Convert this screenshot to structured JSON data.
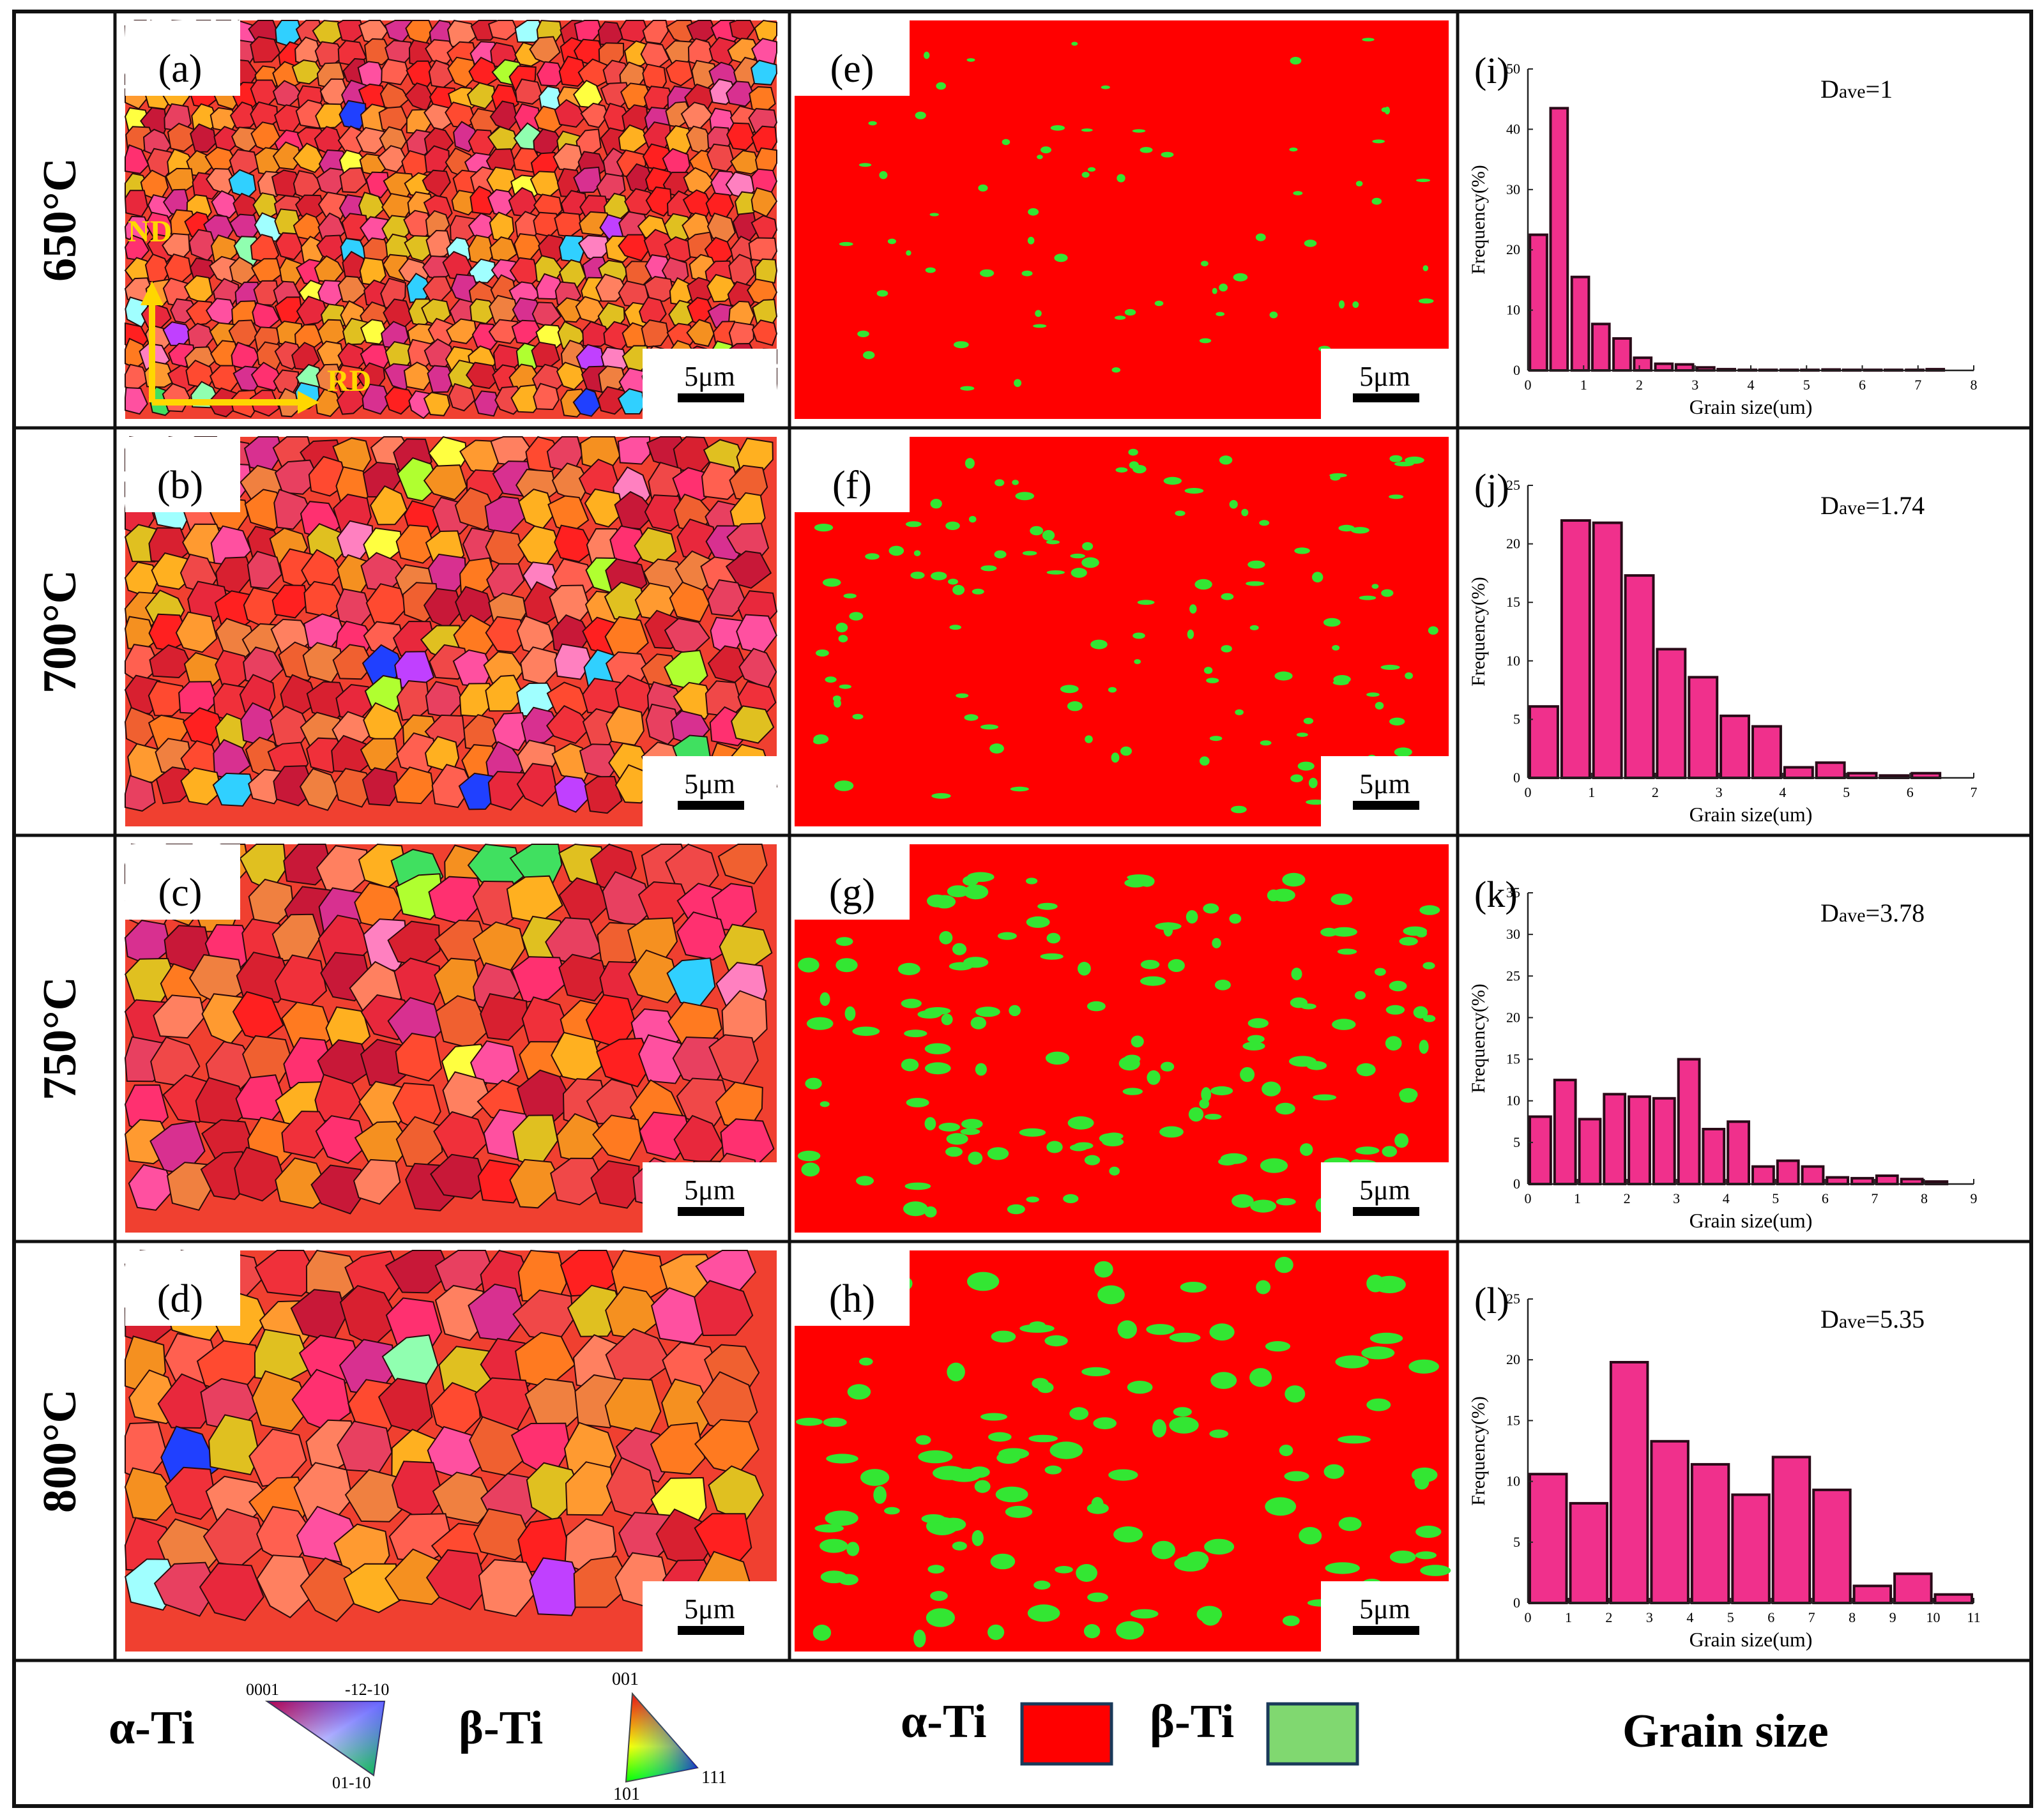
{
  "rows": [
    {
      "temperature": "650°C",
      "ebsd_label": "(a)",
      "phase_label": "(e)",
      "hist_label": "(i)",
      "dave_main": "D",
      "dave_sub": "ave",
      "dave_value": "=1"
    },
    {
      "temperature": "700°C",
      "ebsd_label": "(b)",
      "phase_label": "(f)",
      "hist_label": "(j)",
      "dave_main": "D",
      "dave_sub": "ave",
      "dave_value": "=1.74"
    },
    {
      "temperature": "750°C",
      "ebsd_label": "(c)",
      "phase_label": "(g)",
      "hist_label": "(k)",
      "dave_main": "D",
      "dave_sub": "ave",
      "dave_value": "=3.78"
    },
    {
      "temperature": "800°C",
      "ebsd_label": "(d)",
      "phase_label": "(h)",
      "hist_label": "(l)",
      "dave_main": "D",
      "dave_sub": "ave",
      "dave_value": "=5.35"
    }
  ],
  "scale_bar": "5μm",
  "axes_labels": {
    "nd": "ND",
    "rd": "RD"
  },
  "legend": {
    "alpha_ti": "α-Ti",
    "beta_ti": "β-Ti",
    "alpha_ipf": {
      "top_left": "0001",
      "top_right": "-12-10",
      "bottom": "01-10"
    },
    "beta_ipf": {
      "top": "001",
      "bottom_left": "101",
      "bottom_right": "111"
    },
    "grain_size": "Grain size"
  },
  "colors": {
    "alpha_phase": "#ff0000",
    "beta_phase": "#33e633",
    "bar_fill": "#f0308c",
    "bar_edge": "#2a0a18",
    "beta_legend": "#80d870",
    "legend_border": "#1a3a5a",
    "arrow": "#ffd700"
  },
  "chart_data": [
    {
      "type": "bar",
      "panel": "(i)",
      "xlabel": "Grain size(um)",
      "ylabel": "Frequency(%)",
      "xlim": [
        0,
        8
      ],
      "ylim": [
        0,
        50
      ],
      "x_ticks": [
        "0",
        "1",
        "2",
        "3",
        "4",
        "5",
        "6",
        "7",
        "8"
      ],
      "y_ticks": [
        "0",
        "10",
        "20",
        "30",
        "40",
        "50"
      ],
      "bin_width": 0.375,
      "x": [
        0.19,
        0.56,
        0.94,
        1.31,
        1.69,
        2.06,
        2.44,
        2.81,
        3.19,
        3.56,
        3.94,
        4.31,
        4.69,
        5.06,
        5.44,
        5.81,
        6.19,
        6.56,
        6.94,
        7.31
      ],
      "values": [
        22.5,
        43.5,
        15.5,
        7.7,
        5.3,
        2.1,
        1.1,
        1.0,
        0.5,
        0.2,
        0.1,
        0.1,
        0.1,
        0.1,
        0.15,
        0.1,
        0.1,
        0.1,
        0.1,
        0.2
      ]
    },
    {
      "type": "bar",
      "panel": "(j)",
      "xlabel": "Grain size(um)",
      "ylabel": "Frequency(%)",
      "xlim": [
        0,
        7
      ],
      "ylim": [
        0,
        25
      ],
      "x_ticks": [
        "0",
        "1",
        "2",
        "3",
        "4",
        "5",
        "6",
        "7"
      ],
      "y_ticks": [
        "0",
        "5",
        "10",
        "15",
        "20",
        "25"
      ],
      "bin_width": 0.5,
      "x": [
        0.25,
        0.75,
        1.25,
        1.75,
        2.25,
        2.75,
        3.25,
        3.75,
        4.25,
        4.75,
        5.25,
        5.75,
        6.25
      ],
      "values": [
        6.1,
        22.0,
        21.8,
        17.3,
        11.0,
        8.6,
        5.3,
        4.4,
        0.9,
        1.3,
        0.4,
        0.2,
        0.4
      ]
    },
    {
      "type": "bar",
      "panel": "(k)",
      "xlabel": "Grain size(um)",
      "ylabel": "Frequency(%)",
      "xlim": [
        0,
        9
      ],
      "ylim": [
        0,
        35
      ],
      "x_ticks": [
        "0",
        "1",
        "2",
        "3",
        "4",
        "5",
        "6",
        "7",
        "8",
        "9"
      ],
      "y_ticks": [
        "0",
        "5",
        "10",
        "15",
        "20",
        "25",
        "30",
        "35"
      ],
      "bin_width": 0.5,
      "x": [
        0.25,
        0.75,
        1.25,
        1.75,
        2.25,
        2.75,
        3.25,
        3.75,
        4.25,
        4.75,
        5.25,
        5.75,
        6.25,
        6.75,
        7.25,
        7.75,
        8.25
      ],
      "values": [
        8.1,
        12.5,
        7.8,
        10.8,
        10.5,
        10.3,
        15.0,
        6.6,
        7.5,
        2.1,
        2.8,
        2.1,
        0.8,
        0.7,
        1.0,
        0.6,
        0.3
      ]
    },
    {
      "type": "bar",
      "panel": "(l)",
      "xlabel": "Grain size(um)",
      "ylabel": "Frequency(%)",
      "xlim": [
        0,
        11
      ],
      "ylim": [
        0,
        25
      ],
      "x_ticks": [
        "0",
        "1",
        "2",
        "3",
        "4",
        "5",
        "6",
        "7",
        "8",
        "9",
        "10",
        "11"
      ],
      "y_ticks": [
        "0",
        "5",
        "10",
        "15",
        "20",
        "25"
      ],
      "bin_width": 1,
      "x": [
        0.5,
        1.5,
        2.5,
        3.5,
        4.5,
        5.5,
        6.5,
        7.5,
        8.5,
        9.5,
        10.5
      ],
      "values": [
        10.6,
        8.2,
        19.8,
        13.3,
        11.4,
        8.9,
        12.0,
        9.3,
        1.4,
        2.4,
        0.7
      ]
    }
  ]
}
